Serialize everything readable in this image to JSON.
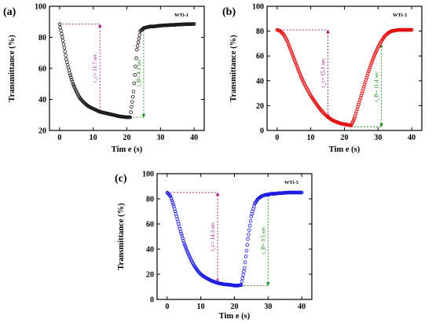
{
  "chart_data": [
    {
      "type": "scatter",
      "panel": "(a)",
      "sample": "WTi-1",
      "xlabel": "Tim e (s)",
      "ylabel": "Transmittance (%)",
      "xlim": [
        -3,
        43
      ],
      "ylim": [
        20,
        100
      ],
      "xticks": [
        "0",
        "10",
        "20",
        "30",
        "40"
      ],
      "yticks": [
        "20",
        "40",
        "60",
        "80",
        "100"
      ],
      "grid": false,
      "marker": "open-circle",
      "color": "#1a1a1a",
      "series": [
        {
          "x": [
            0,
            1,
            2,
            3,
            4,
            5,
            6,
            7,
            8,
            9,
            10,
            11,
            12,
            13,
            14,
            15,
            16,
            17,
            18,
            19,
            20,
            21,
            22,
            23,
            24,
            25,
            26,
            27,
            28,
            29,
            30,
            31,
            32,
            33,
            34,
            35,
            36,
            37,
            38,
            39,
            40
          ],
          "y": [
            88.5,
            78,
            66,
            57,
            50,
            45,
            41,
            38.5,
            36.5,
            35,
            34,
            33,
            32,
            31.5,
            31,
            30.5,
            30,
            29.5,
            29,
            28.8,
            28.5,
            28.5,
            45,
            72,
            84,
            86,
            86.5,
            87,
            87,
            87.3,
            87.5,
            87.7,
            87.8,
            88,
            88,
            88.2,
            88.3,
            88.4,
            88.5,
            88.5,
            88.6
          ]
        }
      ],
      "annotations": [
        {
          "text": "t_c= 11.7 sec",
          "color": "#a01a7d",
          "x": 12,
          "y_from": 88.5,
          "y_to": 32
        },
        {
          "text": "t_B= 4.1 sec",
          "color": "#1a8a1a",
          "x": 25,
          "y_from": 28.5,
          "y_to": 85.5
        }
      ]
    },
    {
      "type": "scatter",
      "panel": "(b)",
      "sample": "WTi-3",
      "xlabel": "Tim e (s)",
      "ylabel": "Transmittance (%)",
      "xlim": [
        -3,
        43
      ],
      "ylim": [
        0,
        100
      ],
      "xticks": [
        "0",
        "10",
        "20",
        "30",
        "40"
      ],
      "yticks": [
        "0",
        "20",
        "40",
        "60",
        "80",
        "100"
      ],
      "grid": false,
      "marker": "open-circle",
      "color": "#e01010",
      "series": [
        {
          "x": [
            0,
            1,
            2,
            3,
            4,
            5,
            6,
            7,
            8,
            9,
            10,
            11,
            12,
            13,
            14,
            15,
            16,
            17,
            18,
            19,
            20,
            21,
            22,
            23,
            24,
            25,
            26,
            27,
            28,
            29,
            30,
            31,
            32,
            33,
            34,
            35,
            36,
            37,
            38,
            39,
            40
          ],
          "y": [
            81,
            80,
            77,
            72,
            65,
            58,
            51,
            44,
            38,
            33,
            28,
            24,
            20,
            16.5,
            13.5,
            11,
            9,
            7.5,
            6.5,
            5.5,
            5,
            4.5,
            4,
            10,
            19,
            28,
            37,
            46,
            54,
            61,
            67,
            72,
            76,
            78.5,
            80,
            80.5,
            81,
            81,
            81,
            81,
            81
          ]
        }
      ],
      "annotations": [
        {
          "text": "t_c= 15.1 sec",
          "color": "#a01a7d",
          "x": 15.1,
          "y_from": 81,
          "y_to": 12
        },
        {
          "text": "t_B= 11.4 sec",
          "color": "#1a8a1a",
          "x": 31,
          "y_from": 3,
          "y_to": 68
        }
      ]
    },
    {
      "type": "scatter",
      "panel": "(c)",
      "sample": "WTi-5",
      "xlabel": "Tim e (s)",
      "ylabel": "Transmittance (%)",
      "xlim": [
        -3,
        43
      ],
      "ylim": [
        0,
        100
      ],
      "xticks": [
        "0",
        "10",
        "20",
        "30",
        "40"
      ],
      "yticks": [
        "0",
        "20",
        "40",
        "60",
        "80",
        "100"
      ],
      "grid": false,
      "marker": "open-circle",
      "color": "#1a1ae0",
      "series": [
        {
          "x": [
            0,
            1,
            2,
            3,
            4,
            5,
            6,
            7,
            8,
            9,
            10,
            11,
            12,
            13,
            14,
            15,
            16,
            17,
            18,
            19,
            20,
            21,
            22,
            23,
            24,
            25,
            26,
            27,
            28,
            29,
            30,
            31,
            32,
            33,
            34,
            35,
            36,
            37,
            38,
            39,
            40
          ],
          "y": [
            85,
            82,
            74,
            64,
            54,
            45,
            38,
            32,
            27,
            23,
            20,
            18,
            16.5,
            15,
            14,
            13,
            12.5,
            12,
            11.8,
            11.5,
            11,
            11,
            11.5,
            25,
            48,
            66,
            76,
            80,
            82,
            83,
            83.5,
            84,
            84,
            84.5,
            84.5,
            84.8,
            85,
            85,
            85,
            85,
            85
          ]
        }
      ],
      "annotations": [
        {
          "text": "t_c= 14.3 sec",
          "color": "#a01a7d",
          "x": 15,
          "y_from": 85,
          "y_to": 15
        },
        {
          "text": "t_B= 9.5 sec",
          "color": "#1a8a1a",
          "x": 30,
          "y_from": 11,
          "y_to": 83
        }
      ]
    }
  ]
}
